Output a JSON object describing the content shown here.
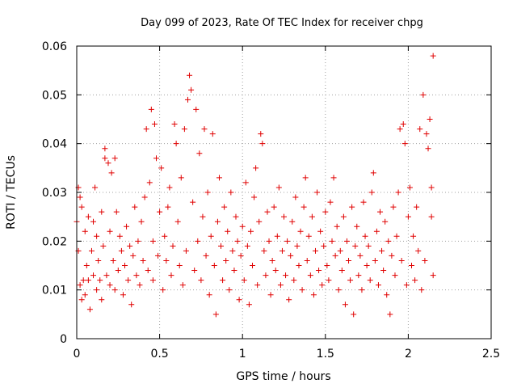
{
  "chart_data": {
    "type": "scatter",
    "title": "Day 099 of 2023, Rate Of TEC Index for receiver chpg",
    "xlabel": "GPS time / hours",
    "ylabel": "ROTI / TECUs",
    "xlim": [
      0,
      2.5
    ],
    "ylim": [
      0,
      0.06
    ],
    "x_ticks": [
      "0",
      "0.5",
      "1",
      "1.5",
      "2",
      "2.5"
    ],
    "y_ticks": [
      "0",
      "0.01",
      "0.02",
      "0.03",
      "0.04",
      "0.05",
      "0.06"
    ],
    "grid": true,
    "marker": "plus",
    "color": "#e00000",
    "series": [
      {
        "points": [
          [
            0.0,
            0.024
          ],
          [
            0.01,
            0.031
          ],
          [
            0.01,
            0.018
          ],
          [
            0.02,
            0.011
          ],
          [
            0.02,
            0.029
          ],
          [
            0.03,
            0.027
          ],
          [
            0.03,
            0.008
          ],
          [
            0.04,
            0.012
          ],
          [
            0.05,
            0.022
          ],
          [
            0.05,
            0.009
          ],
          [
            0.06,
            0.015
          ],
          [
            0.07,
            0.025
          ],
          [
            0.07,
            0.012
          ],
          [
            0.08,
            0.006
          ],
          [
            0.09,
            0.018
          ],
          [
            0.1,
            0.024
          ],
          [
            0.1,
            0.013
          ],
          [
            0.11,
            0.031
          ],
          [
            0.12,
            0.01
          ],
          [
            0.12,
            0.021
          ],
          [
            0.13,
            0.016
          ],
          [
            0.14,
            0.012
          ],
          [
            0.15,
            0.026
          ],
          [
            0.15,
            0.008
          ],
          [
            0.16,
            0.019
          ],
          [
            0.17,
            0.039
          ],
          [
            0.17,
            0.037
          ],
          [
            0.18,
            0.013
          ],
          [
            0.19,
            0.036
          ],
          [
            0.2,
            0.022
          ],
          [
            0.2,
            0.011
          ],
          [
            0.21,
            0.034
          ],
          [
            0.22,
            0.016
          ],
          [
            0.23,
            0.037
          ],
          [
            0.23,
            0.01
          ],
          [
            0.24,
            0.026
          ],
          [
            0.25,
            0.014
          ],
          [
            0.26,
            0.021
          ],
          [
            0.27,
            0.018
          ],
          [
            0.28,
            0.009
          ],
          [
            0.29,
            0.015
          ],
          [
            0.3,
            0.023
          ],
          [
            0.31,
            0.012
          ],
          [
            0.32,
            0.019
          ],
          [
            0.33,
            0.007
          ],
          [
            0.34,
            0.017
          ],
          [
            0.35,
            0.027
          ],
          [
            0.36,
            0.013
          ],
          [
            0.37,
            0.02
          ],
          [
            0.38,
            0.011
          ],
          [
            0.39,
            0.024
          ],
          [
            0.4,
            0.016
          ],
          [
            0.41,
            0.029
          ],
          [
            0.42,
            0.043
          ],
          [
            0.43,
            0.014
          ],
          [
            0.44,
            0.032
          ],
          [
            0.45,
            0.047
          ],
          [
            0.46,
            0.02
          ],
          [
            0.46,
            0.012
          ],
          [
            0.47,
            0.044
          ],
          [
            0.48,
            0.037
          ],
          [
            0.49,
            0.017
          ],
          [
            0.5,
            0.026
          ],
          [
            0.51,
            0.035
          ],
          [
            0.52,
            0.01
          ],
          [
            0.53,
            0.021
          ],
          [
            0.54,
            0.016
          ],
          [
            0.55,
            0.027
          ],
          [
            0.56,
            0.031
          ],
          [
            0.57,
            0.013
          ],
          [
            0.58,
            0.019
          ],
          [
            0.59,
            0.044
          ],
          [
            0.6,
            0.04
          ],
          [
            0.61,
            0.024
          ],
          [
            0.62,
            0.015
          ],
          [
            0.63,
            0.033
          ],
          [
            0.64,
            0.011
          ],
          [
            0.65,
            0.043
          ],
          [
            0.66,
            0.018
          ],
          [
            0.67,
            0.049
          ],
          [
            0.68,
            0.054
          ],
          [
            0.69,
            0.051
          ],
          [
            0.7,
            0.028
          ],
          [
            0.71,
            0.014
          ],
          [
            0.72,
            0.047
          ],
          [
            0.73,
            0.02
          ],
          [
            0.74,
            0.038
          ],
          [
            0.75,
            0.012
          ],
          [
            0.76,
            0.025
          ],
          [
            0.77,
            0.043
          ],
          [
            0.78,
            0.017
          ],
          [
            0.79,
            0.03
          ],
          [
            0.8,
            0.009
          ],
          [
            0.81,
            0.021
          ],
          [
            0.82,
            0.042
          ],
          [
            0.83,
            0.015
          ],
          [
            0.84,
            0.005
          ],
          [
            0.85,
            0.024
          ],
          [
            0.86,
            0.033
          ],
          [
            0.87,
            0.019
          ],
          [
            0.88,
            0.012
          ],
          [
            0.89,
            0.027
          ],
          [
            0.9,
            0.016
          ],
          [
            0.91,
            0.022
          ],
          [
            0.92,
            0.01
          ],
          [
            0.93,
            0.03
          ],
          [
            0.94,
            0.018
          ],
          [
            0.95,
            0.014
          ],
          [
            0.96,
            0.025
          ],
          [
            0.97,
            0.02
          ],
          [
            0.98,
            0.008
          ],
          [
            0.99,
            0.017
          ],
          [
            1.0,
            0.023
          ],
          [
            1.01,
            0.012
          ],
          [
            1.02,
            0.032
          ],
          [
            1.03,
            0.019
          ],
          [
            1.04,
            0.007
          ],
          [
            1.05,
            0.022
          ],
          [
            1.06,
            0.015
          ],
          [
            1.07,
            0.029
          ],
          [
            1.08,
            0.035
          ],
          [
            1.09,
            0.011
          ],
          [
            1.1,
            0.024
          ],
          [
            1.11,
            0.042
          ],
          [
            1.12,
            0.04
          ],
          [
            1.13,
            0.018
          ],
          [
            1.14,
            0.013
          ],
          [
            1.15,
            0.026
          ],
          [
            1.16,
            0.02
          ],
          [
            1.17,
            0.009
          ],
          [
            1.18,
            0.016
          ],
          [
            1.19,
            0.027
          ],
          [
            1.2,
            0.014
          ],
          [
            1.21,
            0.021
          ],
          [
            1.22,
            0.031
          ],
          [
            1.23,
            0.011
          ],
          [
            1.24,
            0.018
          ],
          [
            1.25,
            0.025
          ],
          [
            1.26,
            0.013
          ],
          [
            1.27,
            0.02
          ],
          [
            1.28,
            0.008
          ],
          [
            1.29,
            0.017
          ],
          [
            1.3,
            0.024
          ],
          [
            1.31,
            0.012
          ],
          [
            1.32,
            0.029
          ],
          [
            1.33,
            0.019
          ],
          [
            1.34,
            0.015
          ],
          [
            1.35,
            0.022
          ],
          [
            1.36,
            0.01
          ],
          [
            1.37,
            0.027
          ],
          [
            1.38,
            0.033
          ],
          [
            1.39,
            0.016
          ],
          [
            1.4,
            0.021
          ],
          [
            1.41,
            0.013
          ],
          [
            1.42,
            0.025
          ],
          [
            1.43,
            0.009
          ],
          [
            1.44,
            0.018
          ],
          [
            1.45,
            0.03
          ],
          [
            1.46,
            0.014
          ],
          [
            1.47,
            0.022
          ],
          [
            1.48,
            0.011
          ],
          [
            1.49,
            0.019
          ],
          [
            1.5,
            0.026
          ],
          [
            1.51,
            0.015
          ],
          [
            1.52,
            0.012
          ],
          [
            1.53,
            0.028
          ],
          [
            1.54,
            0.02
          ],
          [
            1.55,
            0.033
          ],
          [
            1.56,
            0.017
          ],
          [
            1.57,
            0.023
          ],
          [
            1.58,
            0.01
          ],
          [
            1.59,
            0.018
          ],
          [
            1.6,
            0.014
          ],
          [
            1.61,
            0.025
          ],
          [
            1.62,
            0.007
          ],
          [
            1.63,
            0.02
          ],
          [
            1.64,
            0.016
          ],
          [
            1.65,
            0.012
          ],
          [
            1.66,
            0.027
          ],
          [
            1.67,
            0.005
          ],
          [
            1.68,
            0.019
          ],
          [
            1.69,
            0.023
          ],
          [
            1.7,
            0.013
          ],
          [
            1.71,
            0.017
          ],
          [
            1.72,
            0.01
          ],
          [
            1.73,
            0.028
          ],
          [
            1.74,
            0.021
          ],
          [
            1.75,
            0.015
          ],
          [
            1.76,
            0.019
          ],
          [
            1.77,
            0.012
          ],
          [
            1.78,
            0.03
          ],
          [
            1.79,
            0.034
          ],
          [
            1.8,
            0.016
          ],
          [
            1.81,
            0.022
          ],
          [
            1.82,
            0.011
          ],
          [
            1.83,
            0.026
          ],
          [
            1.84,
            0.018
          ],
          [
            1.85,
            0.014
          ],
          [
            1.86,
            0.024
          ],
          [
            1.87,
            0.009
          ],
          [
            1.88,
            0.02
          ],
          [
            1.89,
            0.005
          ],
          [
            1.9,
            0.017
          ],
          [
            1.91,
            0.027
          ],
          [
            1.92,
            0.013
          ],
          [
            1.93,
            0.021
          ],
          [
            1.94,
            0.03
          ],
          [
            1.95,
            0.043
          ],
          [
            1.96,
            0.016
          ],
          [
            1.97,
            0.044
          ],
          [
            1.98,
            0.04
          ],
          [
            1.99,
            0.011
          ],
          [
            2.0,
            0.025
          ],
          [
            2.01,
            0.031
          ],
          [
            2.02,
            0.015
          ],
          [
            2.03,
            0.021
          ],
          [
            2.04,
            0.012
          ],
          [
            2.05,
            0.027
          ],
          [
            2.06,
            0.018
          ],
          [
            2.07,
            0.043
          ],
          [
            2.08,
            0.01
          ],
          [
            2.09,
            0.05
          ],
          [
            2.1,
            0.016
          ],
          [
            2.11,
            0.042
          ],
          [
            2.12,
            0.039
          ],
          [
            2.13,
            0.045
          ],
          [
            2.14,
            0.025
          ],
          [
            2.14,
            0.031
          ],
          [
            2.15,
            0.058
          ],
          [
            2.15,
            0.013
          ]
        ]
      }
    ]
  }
}
